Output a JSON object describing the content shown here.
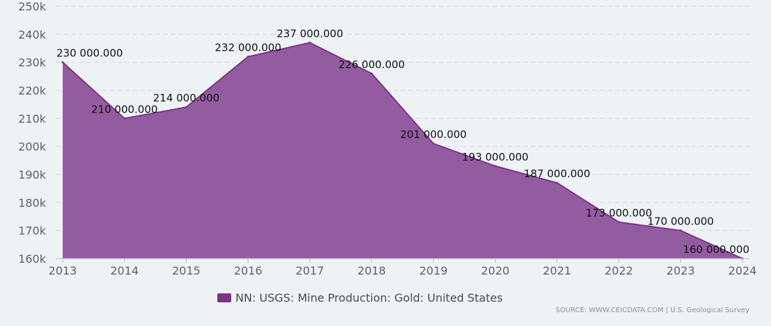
{
  "chart_data": {
    "type": "area",
    "x": [
      "2013",
      "2014",
      "2015",
      "2016",
      "2017",
      "2018",
      "2019",
      "2020",
      "2021",
      "2022",
      "2023",
      "2024"
    ],
    "series": [
      {
        "name": "NN: USGS: Mine Production: Gold: United States",
        "color": "#7b3585",
        "fill_color": "#945ca0",
        "values": [
          230000,
          210000,
          214000,
          232000,
          237000,
          226000,
          201000,
          193000,
          187000,
          173000,
          170000,
          160000
        ],
        "labels": [
          "230 000.000",
          "210 000.000",
          "214 000.000",
          "232 000.000",
          "237 000.000",
          "226 000.000",
          "201 000.000",
          "193 000.000",
          "187 000.000",
          "173 000.000",
          "170 000.000",
          "160 000.000"
        ]
      }
    ],
    "ylim": [
      160000,
      250000
    ],
    "yticks": [
      160000,
      170000,
      180000,
      190000,
      200000,
      210000,
      220000,
      230000,
      240000,
      250000
    ],
    "ytick_labels": [
      "160k",
      "170k",
      "180k",
      "190k",
      "200k",
      "210k",
      "220k",
      "230k",
      "240k",
      "250k"
    ],
    "grid": true,
    "legend_position": "bottom-center"
  },
  "source": "SOURCE: WWW.CEICDATA.COM | U.S. Geological Survey"
}
